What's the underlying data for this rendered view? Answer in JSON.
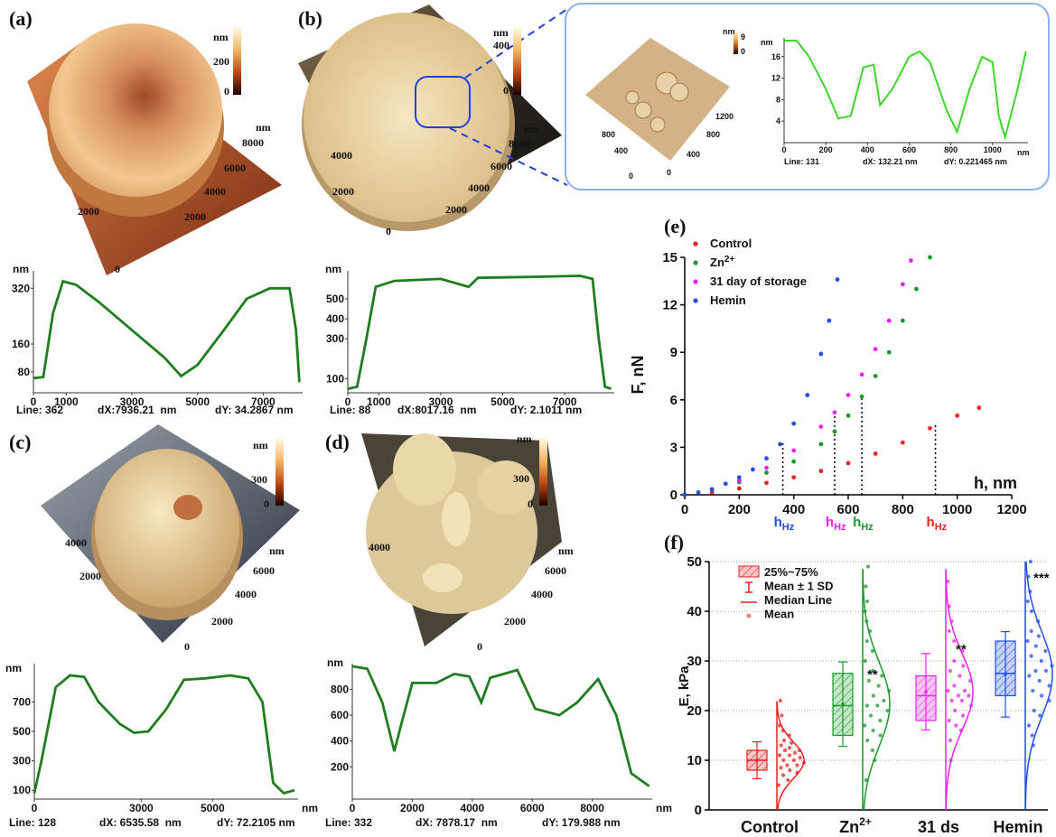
{
  "panel_labels": [
    "(a)",
    "(b)",
    "(c)",
    "(d)",
    "(e)",
    "(f)"
  ],
  "afm_images": {
    "a": {
      "colorbar_unit": "nm",
      "colorbar_ticks": [
        200,
        0
      ],
      "axis_labels": [
        "nm",
        8000,
        6000,
        4000,
        2000,
        0,
        2000
      ]
    },
    "b": {
      "colorbar_unit": "nm",
      "colorbar_ticks": [
        400,
        0
      ],
      "axis_labels": [
        "nm",
        8000,
        6000,
        4000,
        2000,
        0,
        4000,
        2000
      ]
    },
    "b_inset": {
      "colorbar_unit": "nm",
      "colorbar_ticks": [
        9,
        0
      ],
      "axis_labels": [
        1200,
        800,
        400,
        0,
        800,
        400,
        0
      ]
    },
    "c": {
      "colorbar_unit": "nm",
      "colorbar_ticks": [
        300,
        0
      ],
      "axis_labels": [
        "nm",
        6000,
        4000,
        2000,
        0,
        4000,
        2000
      ]
    },
    "d": {
      "colorbar_unit": "nm",
      "colorbar_ticks": [
        300,
        0
      ],
      "axis_labels": [
        "nm",
        6000,
        4000,
        2000,
        0,
        4000
      ]
    }
  },
  "chart_data": [
    {
      "type": "line",
      "y_unit": "nm",
      "line": "Line: 362",
      "dx": "dX:7936.21  nm",
      "dy": "dY: 34.2867 nm",
      "xlim": [
        0,
        8200
      ],
      "xticks": [
        0,
        1000,
        3000,
        5000,
        7000
      ],
      "ylim": [
        20,
        370
      ],
      "yticks": [
        80,
        160,
        320
      ],
      "x": [
        0,
        300,
        600,
        900,
        1300,
        2000,
        3000,
        4000,
        4500,
        5000,
        5800,
        6500,
        7200,
        7800,
        8000,
        8100
      ],
      "series": [
        {
          "color": "#1f7d1f",
          "values": [
            62,
            65,
            250,
            340,
            330,
            280,
            200,
            120,
            68,
            100,
            200,
            290,
            320,
            320,
            200,
            50
          ]
        }
      ]
    },
    {
      "type": "line",
      "y_unit": "nm",
      "line": "Line: 88",
      "dx": "dX:8017.16  nm",
      "dy": "dY: 2.1011 nm",
      "xlim": [
        0,
        8600
      ],
      "xticks": [
        0,
        1000,
        3000,
        5000,
        7000
      ],
      "ylim": [
        30,
        640
      ],
      "yticks": [
        100,
        300,
        400,
        500
      ],
      "x": [
        0,
        300,
        600,
        900,
        1500,
        3000,
        3900,
        4200,
        6000,
        7500,
        7900,
        8100,
        8300,
        8500
      ],
      "series": [
        {
          "color": "#1f7d1f",
          "values": [
            50,
            60,
            300,
            560,
            590,
            600,
            560,
            605,
            610,
            615,
            600,
            300,
            60,
            50
          ]
        }
      ]
    },
    {
      "type": "line",
      "y_unit": "nm",
      "x_unit": "nm",
      "line": "Line: 128",
      "dx": "dX: 6535.58  nm",
      "dy": "dY: 72.2105 nm",
      "xlim": [
        0,
        7400
      ],
      "xticks": [
        0,
        3000,
        5000
      ],
      "ylim": [
        40,
        960
      ],
      "yticks": [
        100,
        300,
        500,
        700
      ],
      "x": [
        0,
        200,
        600,
        1000,
        1400,
        1800,
        2400,
        2800,
        3200,
        3700,
        4200,
        4800,
        5500,
        6000,
        6400,
        6700,
        7000,
        7300
      ],
      "series": [
        {
          "color": "#1f7d1f",
          "values": [
            80,
            300,
            800,
            880,
            870,
            700,
            550,
            490,
            500,
            650,
            850,
            860,
            880,
            860,
            700,
            150,
            80,
            100
          ]
        }
      ]
    },
    {
      "type": "line",
      "y_unit": "nm",
      "x_unit": "nm",
      "line": "Line: 332",
      "dx": "dX: 7878.17  nm",
      "dy": "dY: 179.988 nm",
      "xlim": [
        0,
        10000
      ],
      "xticks": [
        0,
        2000,
        4000,
        6000,
        8000
      ],
      "ylim": [
        -50,
        1000
      ],
      "yticks": [
        200,
        400,
        600,
        800
      ],
      "x": [
        0,
        500,
        1000,
        1400,
        1600,
        2000,
        2800,
        3400,
        3900,
        4300,
        4600,
        5500,
        6100,
        6900,
        7500,
        8200,
        8800,
        9300,
        9900
      ],
      "series": [
        {
          "color": "#1f7d1f",
          "values": [
            980,
            960,
            700,
            320,
            500,
            850,
            850,
            920,
            900,
            700,
            890,
            950,
            650,
            600,
            700,
            880,
            600,
            150,
            50
          ]
        }
      ]
    },
    {
      "type": "line",
      "y_unit": "nm",
      "x_unit": "nm",
      "line": "Line: 131",
      "dx": "dX: 132.21 nm",
      "dy": "dY: 0.221465 nm",
      "xlim": [
        0,
        1170
      ],
      "xticks": [
        0,
        200,
        400,
        600,
        800,
        1000
      ],
      "ylim": [
        0,
        19.5
      ],
      "yticks": [
        4,
        8,
        12,
        16
      ],
      "x": [
        0,
        60,
        120,
        200,
        260,
        320,
        380,
        430,
        460,
        520,
        600,
        650,
        700,
        780,
        830,
        890,
        950,
        1000,
        1030,
        1060,
        1120,
        1160
      ],
      "series": [
        {
          "color": "#3fd62a",
          "values": [
            19,
            19,
            16,
            10,
            4.5,
            5,
            14,
            14.5,
            7,
            10,
            16,
            17,
            15,
            6,
            2,
            10,
            16,
            15,
            5,
            1,
            10,
            17
          ]
        }
      ]
    },
    {
      "type": "scatter",
      "ylabel": "F, nN",
      "xlabel": "h, nm",
      "xlim": [
        0,
        1200
      ],
      "xticks": [
        0,
        200,
        400,
        600,
        800,
        1000,
        1200
      ],
      "ylim": [
        0,
        15
      ],
      "yticks": [
        0,
        3,
        6,
        9,
        12,
        15
      ],
      "series": [
        {
          "name": "Control",
          "color": "#e8201e",
          "x": [
            0,
            100,
            200,
            300,
            400,
            500,
            600,
            700,
            800,
            900,
            1000,
            1080
          ],
          "values": [
            0,
            0.15,
            0.4,
            0.75,
            1.1,
            1.5,
            2.0,
            2.6,
            3.3,
            4.2,
            5.0,
            5.5
          ]
        },
        {
          "name": "Zn",
          "name_superscript": "2+",
          "color": "#1a9a2a",
          "x": [
            0,
            100,
            200,
            300,
            400,
            500,
            550,
            600,
            650,
            700,
            750,
            800,
            850,
            900
          ],
          "values": [
            0,
            0.3,
            0.8,
            1.4,
            2.1,
            3.2,
            4.0,
            5.0,
            6.2,
            7.5,
            9.0,
            11,
            13,
            15
          ]
        },
        {
          "name": "31 day of storage",
          "color": "#f020f0",
          "x": [
            0,
            100,
            200,
            300,
            400,
            500,
            550,
            600,
            650,
            700,
            750,
            800,
            830
          ],
          "values": [
            0,
            0.35,
            0.9,
            1.7,
            2.8,
            4.3,
            5.2,
            6.3,
            7.6,
            9.2,
            11,
            13.3,
            14.8
          ]
        },
        {
          "name": "Hemin",
          "color": "#1f4fe8",
          "x": [
            0,
            50,
            100,
            150,
            200,
            250,
            300,
            350,
            400,
            450,
            500,
            530,
            560
          ],
          "values": [
            0,
            0.15,
            0.35,
            0.7,
            1.1,
            1.6,
            2.3,
            3.2,
            4.5,
            6.3,
            8.9,
            11,
            13.6
          ]
        }
      ],
      "annotations": [
        {
          "x": 360,
          "y": 3.4,
          "label": "h",
          "subscript": "Hz",
          "color": "#1f4fe8"
        },
        {
          "x": 550,
          "y": 5.2,
          "label": "h",
          "subscript": "Hz",
          "color": "#f020f0"
        },
        {
          "x": 650,
          "y": 6.2,
          "label": "h",
          "subscript": "Hz",
          "color": "#1a9a2a"
        },
        {
          "x": 920,
          "y": 4.4,
          "label": "h",
          "subscript": "Hz",
          "color": "#e8201e"
        }
      ]
    },
    {
      "type": "box",
      "ylabel": "E, kPa",
      "ylim": [
        0,
        50
      ],
      "yticks": [
        0,
        10,
        20,
        30,
        40,
        50
      ],
      "grid": true,
      "categories": [
        "Control",
        "Zn",
        "31 ds",
        "Hemin"
      ],
      "category_superscripts": [
        null,
        "2+",
        null,
        null
      ],
      "colors": [
        "#e8201e",
        "#1a9a2a",
        "#f020f0",
        "#1f4fe8"
      ],
      "legend": [
        "25%~75%",
        "Mean ± 1 SD",
        "Median Line",
        "Mean"
      ],
      "significance": [
        null,
        "**",
        "**",
        "***"
      ],
      "boxes": [
        {
          "q1": 8,
          "median": 10,
          "q3": 12,
          "mean": 10,
          "sd": 3.7,
          "points": [
            5,
            6,
            7,
            7.5,
            8,
            8.5,
            9,
            9,
            9.5,
            10,
            10,
            10.5,
            11,
            11,
            11.5,
            12,
            12,
            12.5,
            13,
            13.5,
            14,
            15,
            16,
            17,
            19,
            22
          ]
        },
        {
          "q1": 15,
          "median": 21,
          "q3": 27.5,
          "mean": 21.3,
          "sd": 8.5,
          "points": [
            6,
            10,
            12,
            14,
            15,
            16,
            17,
            18,
            19,
            20,
            21,
            21,
            22,
            23,
            24,
            25,
            26,
            27,
            28,
            30,
            32,
            34,
            36,
            38,
            40,
            42,
            45,
            49
          ]
        },
        {
          "q1": 18,
          "median": 23,
          "q3": 27,
          "mean": 23.8,
          "sd": 7.7,
          "points": [
            10,
            14,
            16,
            17,
            18,
            19,
            20,
            21,
            22,
            22,
            23,
            23,
            24,
            24,
            25,
            26,
            27,
            28,
            29,
            30,
            32,
            34,
            36,
            38,
            41,
            46
          ]
        },
        {
          "q1": 23,
          "median": 27.5,
          "q3": 34,
          "mean": 27.3,
          "sd": 8.6,
          "points": [
            13,
            15,
            17,
            19,
            20,
            22,
            23,
            24,
            25,
            26,
            27,
            28,
            28,
            29,
            30,
            31,
            32,
            33,
            34,
            35,
            36,
            38,
            40,
            42,
            44,
            47,
            50
          ]
        }
      ]
    }
  ]
}
